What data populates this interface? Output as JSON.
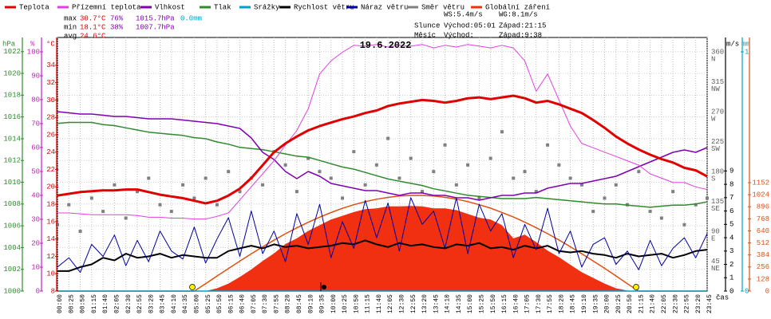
{
  "chart_data": {
    "type": "line",
    "title": "19.6.2022",
    "x": [
      "00:00",
      "00:25",
      "00:50",
      "01:15",
      "01:40",
      "02:05",
      "02:30",
      "02:55",
      "03:20",
      "03:45",
      "04:10",
      "04:35",
      "05:00",
      "05:25",
      "05:50",
      "06:15",
      "06:40",
      "07:05",
      "07:30",
      "07:55",
      "08:20",
      "08:45",
      "09:10",
      "09:35",
      "10:00",
      "10:25",
      "10:50",
      "11:15",
      "11:40",
      "12:05",
      "12:30",
      "12:55",
      "13:20",
      "13:45",
      "14:10",
      "14:35",
      "15:00",
      "15:25",
      "15:50",
      "16:15",
      "16:40",
      "17:05",
      "17:30",
      "17:55",
      "18:20",
      "18:45",
      "19:10",
      "19:35",
      "20:00",
      "20:25",
      "20:50",
      "21:15",
      "21:40",
      "22:05",
      "22:30",
      "22:55",
      "23:20",
      "23:45"
    ],
    "x_label": "čas",
    "axes": [
      {
        "label": "hPa",
        "color": "#2e8b2e",
        "lim": [
          1000,
          1023.3
        ],
        "ticks": [
          1000,
          1002,
          1004,
          1006,
          1008,
          1010,
          1012,
          1014,
          1016,
          1018,
          1020,
          1022
        ]
      },
      {
        "label": "%",
        "color": "#c020c0",
        "lim": [
          0,
          106
        ],
        "ticks": [
          0,
          10,
          20,
          30,
          40,
          50,
          60,
          70,
          80,
          90,
          100
        ]
      },
      {
        "label": "°C",
        "color": "#e00000",
        "lim": [
          8,
          37.2
        ],
        "ticks": [
          8,
          10,
          12,
          14,
          16,
          18,
          20,
          22,
          24,
          26,
          28,
          30,
          32,
          34
        ]
      },
      {
        "label": "m/s",
        "color": "#000000",
        "lim": [
          0,
          19
        ],
        "ticks": [
          0,
          1,
          2,
          3,
          4,
          5,
          6,
          7,
          8,
          9
        ]
      },
      {
        "label": "mm",
        "color": "#00a0c8",
        "lim": [
          0,
          1.06
        ],
        "ticks": [
          0,
          1
        ]
      },
      {
        "color": "#e05010",
        "lim": [
          0,
          2695
        ],
        "ticks": [
          0,
          128,
          256,
          384,
          512,
          640,
          768,
          896,
          1024,
          1152
        ]
      },
      {
        "color": "#606060",
        "lim": [
          0,
          382
        ],
        "ticks": [
          45,
          90,
          135,
          180,
          225,
          270,
          315,
          360
        ],
        "compass": [
          "NE",
          "E",
          "SE",
          "S",
          "SW",
          "W",
          "NW",
          "N"
        ]
      }
    ],
    "grid": true,
    "series": [
      {
        "name": "Teplota",
        "type": "line",
        "axis": 2,
        "color": "#e00000",
        "width": 3,
        "values": [
          19,
          19.2,
          19.4,
          19.5,
          19.6,
          19.6,
          19.7,
          19.7,
          19.4,
          19.1,
          18.9,
          18.7,
          18.4,
          18.1,
          18.4,
          19,
          19.8,
          21,
          22.5,
          24,
          25,
          25.8,
          26.5,
          27,
          27.4,
          27.8,
          28.1,
          28.5,
          28.8,
          29.3,
          29.6,
          29.8,
          30,
          29.9,
          29.7,
          29.9,
          30.2,
          30.3,
          30.1,
          30.3,
          30.5,
          30.2,
          29.7,
          29.9,
          29.5,
          29,
          28.5,
          27.7,
          26.8,
          25.8,
          25,
          24.3,
          23.7,
          23.2,
          22.8,
          22.2,
          21.9,
          21.2
        ]
      },
      {
        "name": "Přízemní teplota",
        "type": "line",
        "axis": 2,
        "color": "#e040e0",
        "width": 1,
        "values": [
          17,
          17,
          16.9,
          16.8,
          16.8,
          16.8,
          16.8,
          16.7,
          16.5,
          16.5,
          16.4,
          16.4,
          16.3,
          16.3,
          16.6,
          17,
          18.5,
          20,
          21.5,
          23,
          24.8,
          26.5,
          29,
          33,
          34.5,
          35.5,
          36.3,
          36.2,
          36.4,
          36.1,
          36.3,
          36.2,
          36.4,
          36,
          36.3,
          36.1,
          36.4,
          36.2,
          36,
          36.3,
          36,
          34.5,
          31,
          33,
          30,
          27,
          25,
          24.5,
          24,
          23.5,
          23,
          22.5,
          21.5,
          21,
          20.5,
          20.5,
          20,
          19.7
        ]
      },
      {
        "name": "Vlhkost",
        "type": "line",
        "axis": 1,
        "color": "#8000b0",
        "width": 1.5,
        "values": [
          75,
          74.5,
          74,
          74,
          73.5,
          73,
          73,
          72.5,
          72,
          72,
          72,
          71.5,
          71,
          70.5,
          70,
          69,
          68,
          64,
          58,
          55,
          50,
          47,
          50,
          48,
          45,
          44,
          43,
          42,
          42,
          41,
          40,
          41,
          41,
          40,
          40,
          39,
          39,
          38,
          39,
          40,
          40,
          41,
          41,
          43,
          44,
          45,
          45,
          46,
          47,
          48,
          50,
          52,
          54,
          56,
          58,
          59,
          58,
          60
        ]
      },
      {
        "name": "Tlak",
        "type": "line",
        "axis": 0,
        "color": "#2e8b2e",
        "width": 1.5,
        "values": [
          1015.4,
          1015.5,
          1015.5,
          1015.5,
          1015.3,
          1015.2,
          1015,
          1014.8,
          1014.6,
          1014.5,
          1014.4,
          1014.3,
          1014.1,
          1014,
          1013.7,
          1013.5,
          1013.2,
          1013.1,
          1013,
          1012.8,
          1012.6,
          1012.4,
          1012.3,
          1012,
          1011.7,
          1011.4,
          1011.2,
          1010.9,
          1010.6,
          1010.3,
          1010.1,
          1009.9,
          1009.7,
          1009.4,
          1009.2,
          1009,
          1008.8,
          1008.7,
          1008.6,
          1008.5,
          1008.5,
          1008.5,
          1008.6,
          1008.5,
          1008.4,
          1008.3,
          1008.2,
          1008.1,
          1008,
          1008,
          1007.9,
          1007.8,
          1007.7,
          1007.8,
          1007.9,
          1007.9,
          1008,
          1008.2
        ]
      },
      {
        "name": "Srážky",
        "type": "line",
        "axis": 4,
        "color": "#00a0c8",
        "width": 1.5,
        "values": [
          0,
          0,
          0,
          0,
          0,
          0,
          0,
          0,
          0,
          0,
          0,
          0,
          0,
          0,
          0,
          0,
          0,
          0,
          0,
          0,
          0,
          0,
          0,
          0,
          0,
          0,
          0,
          0,
          0,
          0,
          0,
          0,
          0,
          0,
          0,
          0,
          0,
          0,
          0,
          0,
          0,
          0,
          0,
          0,
          0,
          0,
          0,
          0,
          0,
          0,
          0,
          0,
          0,
          0,
          0,
          0,
          0,
          0
        ]
      },
      {
        "name": "Rychlost větru",
        "type": "line",
        "axis": 3,
        "color": "#000000",
        "width": 2,
        "values": [
          1.5,
          1.5,
          1.8,
          2,
          2.5,
          2.3,
          2.8,
          2.5,
          2.6,
          2.8,
          2.5,
          2.7,
          2.6,
          2.5,
          2.5,
          3,
          3.2,
          3.4,
          3.2,
          3.5,
          3.3,
          3.4,
          3.2,
          3.3,
          3.4,
          3.6,
          3.5,
          3.8,
          3.5,
          3.3,
          3.6,
          3.4,
          3.5,
          3.3,
          3.2,
          3.5,
          3.4,
          3.6,
          3.2,
          3.3,
          3.1,
          3.4,
          3.2,
          3.4,
          3,
          2.9,
          3,
          2.8,
          2.7,
          2.5,
          2.8,
          2.6,
          2.7,
          2.8,
          2.5,
          2.7,
          3,
          3.1
        ]
      },
      {
        "name": "Náraz větru",
        "type": "line",
        "axis": 3,
        "color": "#0000a0",
        "width": 1,
        "values": [
          1.8,
          2.5,
          1.4,
          3.5,
          2.6,
          4.2,
          1.9,
          3.8,
          2.2,
          4.5,
          3,
          2.4,
          4.8,
          2.1,
          3.9,
          5.5,
          2.6,
          6,
          2.8,
          4.5,
          2.2,
          5.8,
          3.5,
          6.5,
          2.5,
          5.2,
          3.2,
          6.8,
          4,
          6.6,
          3,
          7,
          5,
          6,
          3.2,
          7,
          2.8,
          6.5,
          4.5,
          5.8,
          2.5,
          5,
          3.1,
          6.2,
          2.8,
          4.5,
          1.8,
          3.5,
          4,
          2,
          3,
          1.6,
          3.8,
          1.9,
          3.2,
          4,
          2.5,
          4.3
        ]
      },
      {
        "name": "Směr větru",
        "type": "scatter",
        "axis": 6,
        "color": "#808080",
        "values": [
          100,
          130,
          90,
          140,
          120,
          160,
          110,
          150,
          170,
          130,
          120,
          160,
          140,
          170,
          130,
          180,
          150,
          170,
          160,
          210,
          190,
          150,
          200,
          180,
          170,
          140,
          210,
          160,
          190,
          230,
          170,
          200,
          150,
          180,
          220,
          160,
          190,
          140,
          200,
          240,
          170,
          180,
          150,
          220,
          190,
          170,
          160,
          120,
          140,
          160,
          130,
          180,
          120,
          110,
          150,
          100,
          130,
          140
        ]
      },
      {
        "name": "Globální záření",
        "type": "area",
        "axis": 5,
        "color": "#f03010",
        "values": [
          0,
          0,
          0,
          0,
          0,
          0,
          0,
          0,
          0,
          0,
          0,
          0,
          0,
          0,
          30,
          80,
          150,
          230,
          320,
          400,
          500,
          560,
          640,
          700,
          760,
          800,
          840,
          870,
          880,
          900,
          900,
          905,
          900,
          880,
          880,
          860,
          820,
          780,
          760,
          700,
          560,
          600,
          520,
          430,
          360,
          280,
          200,
          140,
          80,
          30,
          5,
          0,
          0,
          0,
          0,
          0,
          0,
          0
        ]
      }
    ],
    "clear_sky": {
      "axis": 5,
      "color": "#e05010",
      "values": [
        0,
        0,
        0,
        0,
        0,
        0,
        0,
        0,
        0,
        0,
        0,
        0,
        0,
        79,
        160,
        240,
        319,
        396,
        470,
        541,
        609,
        672,
        731,
        786,
        835,
        880,
        918,
        950,
        976,
        996,
        1010,
        1016,
        1016,
        1010,
        997,
        977,
        951,
        918,
        881,
        836,
        787,
        732,
        673,
        610,
        542,
        471,
        397,
        320,
        242,
        161,
        79,
        0,
        0,
        0,
        0,
        0,
        0,
        0
      ]
    },
    "stats": [
      {
        "label": "max",
        "values": [
          "30.7°C",
          "76%",
          "1015.7hPa",
          "0.0mm"
        ]
      },
      {
        "label": "min",
        "values": [
          "18.1°C",
          "38%",
          "1007.7hPa"
        ]
      },
      {
        "label": "avg",
        "values": [
          "24.6°C"
        ]
      }
    ],
    "info": {
      "ws": "WS:5.4m/s",
      "wg": "WG:8.1m/s",
      "sun": "Slunce",
      "sunrise": "Východ:05:01",
      "sunset": "Západ:21:15",
      "moon": "Měsíc",
      "moonrise": "Východ:",
      "moonset": "Západ:9:38"
    }
  }
}
